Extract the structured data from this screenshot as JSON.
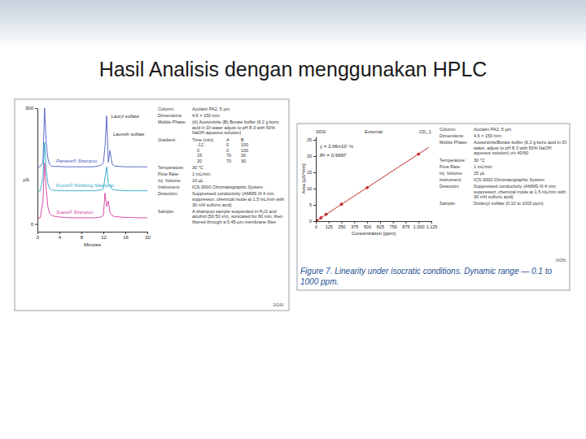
{
  "title": "Hasil Analisis dengan menggunakan HPLC",
  "chart_data": [
    {
      "type": "line",
      "x_label": "Minutes",
      "y_label": "µS",
      "x": [
        0,
        0.5,
        1,
        1.3,
        1.6,
        1.9,
        2.2,
        2.6,
        3,
        4,
        5,
        6,
        7,
        8,
        8.3,
        8.6,
        8.9,
        9.2,
        9.5,
        9.8,
        10.1,
        10.5,
        11,
        11.5,
        12,
        12.3,
        12.6,
        12.9,
        13.2,
        13.6,
        14,
        15,
        16,
        17,
        18,
        19,
        20
      ],
      "xlim": [
        0,
        20
      ],
      "xticks": [
        0,
        4,
        8,
        12,
        16,
        20
      ],
      "ylim": [
        -20,
        300
      ],
      "yticks": [
        0,
        300
      ],
      "grid": false,
      "series": [
        {
          "name": "Pantene® Shampoo",
          "color": "#4a5cc4",
          "values": [
            148,
            148,
            160,
            300,
            210,
            170,
            155,
            150,
            149,
            149,
            148,
            148,
            148,
            148,
            148,
            148,
            148,
            148,
            148,
            148,
            148,
            149,
            150,
            152,
            158,
            200,
            280,
            160,
            190,
            155,
            150,
            149,
            148,
            148,
            148,
            148,
            148
          ]
        },
        {
          "name": "Fructis® Fortifying Shampoo",
          "color": "#27a6c8",
          "values": [
            85,
            86,
            120,
            211,
            140,
            105,
            92,
            88,
            87,
            86,
            86,
            86,
            86,
            86,
            86,
            86,
            86,
            86,
            86,
            86,
            86,
            86,
            87,
            88,
            92,
            120,
            148,
            105,
            100,
            90,
            88,
            87,
            86,
            86,
            86,
            86,
            86
          ]
        },
        {
          "name": "Suave® Shampoo",
          "color": "#d23c9f",
          "values": [
            15,
            16,
            60,
            158,
            90,
            45,
            28,
            22,
            20,
            18,
            17,
            16,
            16,
            16,
            16,
            16,
            16,
            16,
            16,
            16,
            16,
            16,
            17,
            18,
            22,
            80,
            45,
            60,
            30,
            22,
            19,
            18,
            17,
            17,
            16,
            16,
            16
          ]
        }
      ],
      "annotations": [
        {
          "text": "Lauryl sulfate",
          "x": 13.4,
          "y": 275
        },
        {
          "text": "Laureth sulfate",
          "x": 13.8,
          "y": 228
        }
      ],
      "method": [
        {
          "label": "Column:",
          "text": "Acclaim PA2, 5 µm"
        },
        {
          "label": "Dimensions:",
          "text": "4.6 × 150 mm"
        },
        {
          "label": "Mobile Phase:",
          "text": "(A) Acetonitrile (B) Borate buffer (6.2 g boric acid in DI water adjust to pH 8.3 with 50% NaOH aqueous solution)"
        },
        {
          "label": "Gradient:",
          "table": {
            "header": [
              "Time (min)",
              "A",
              "B"
            ],
            "rows": [
              [
                -12,
                0,
                100
              ],
              [
                0,
                0,
                100
              ],
              [
                15,
                70,
                30
              ],
              [
                20,
                70,
                30
              ]
            ]
          }
        },
        {
          "label": "Temperature:",
          "text": "30 °C"
        },
        {
          "label": "Flow Rate:",
          "text": "1 mL/min"
        },
        {
          "label": "Inj. Volume:",
          "text": "10 µL"
        },
        {
          "label": "Instrument:",
          "text": "ICS-3000 Chromatographic System"
        },
        {
          "label": "Detection:",
          "text": "Suppressed conductivity (AMMS III 4 mm suppressor, chemical mode at 1.5 mL/min with 30 mN sulfuric acid)"
        },
        {
          "label": "Sample:",
          "text": "A shampoo sample suspended in H₂O and alcohol (50:50 v/v), sonicated for 60 min, then filtered through a 0.45-µm membrane filter."
        }
      ],
      "figure_number": "24249"
    },
    {
      "type": "scatter",
      "header": [
        "SDS",
        "External",
        "CD_1"
      ],
      "x_label": "Concentration [ppm]",
      "y_label": "Area [µS*min]",
      "xlim": [
        0,
        1125
      ],
      "xticks": [
        0,
        125,
        250,
        375,
        500,
        625,
        750,
        875,
        {
          "value": 1000,
          "label": "1,000"
        },
        {
          "value": 1125,
          "label": "1,125"
        }
      ],
      "ylim": [
        0,
        26
      ],
      "yticks": [
        0,
        5,
        10,
        15,
        20,
        25
      ],
      "grid": false,
      "series": [
        {
          "type": "scatter",
          "color": "#c62828",
          "marker": "circle",
          "x": [
            0.1,
            1,
            5,
            10,
            50,
            100,
            250,
            500,
            1000
          ],
          "values": [
            0,
            0,
            0.1,
            0.2,
            1.0,
            2.1,
            5.2,
            10.3,
            20.6
          ]
        },
        {
          "type": "line",
          "color": "#c62828",
          "line_style": "solid",
          "x": [
            0,
            1100
          ],
          "values": [
            0,
            22.7
          ]
        }
      ],
      "annotations": [
        {
          "text": "y = 2.06×10⁻²x",
          "x": 40,
          "y": 22.5
        },
        {
          "text": "R² = 0.9997",
          "x": 40,
          "y": 19.8
        }
      ],
      "method": [
        {
          "label": "Column:",
          "text": "Acclaim PA2, 5 µm"
        },
        {
          "label": "Dimensions:",
          "text": "4.6 × 150 mm"
        },
        {
          "label": "Mobile Phase:",
          "text": "Acetonitrile/Borate buffer (6.2 g boric acid in DI water, adjust to pH 8.3 with 50% NaOH aqueous solution) v/v 40/60"
        },
        {
          "label": "Temperature:",
          "text": "30 °C"
        },
        {
          "label": "Flow Rate:",
          "text": "1 mL/min"
        },
        {
          "label": "Inj. Volume:",
          "text": "25 µL"
        },
        {
          "label": "Instrument:",
          "text": "ICS-3000 Chromatographic System"
        },
        {
          "label": "Detection:",
          "text": "Suppressed conductivity (AMMS III 4 mm suppressor, chemical mode at 1.5 mL/min with 30 mN sulfuric acid)"
        },
        {
          "label": "Sample:",
          "text": "Dodecyl sulfate (0.10 to 1000 ppm)"
        }
      ],
      "figure_number": "24256",
      "caption": "Figure 7. Linearity under isocratic conditions. Dynamic range — 0.1 to 1000 ppm."
    }
  ]
}
